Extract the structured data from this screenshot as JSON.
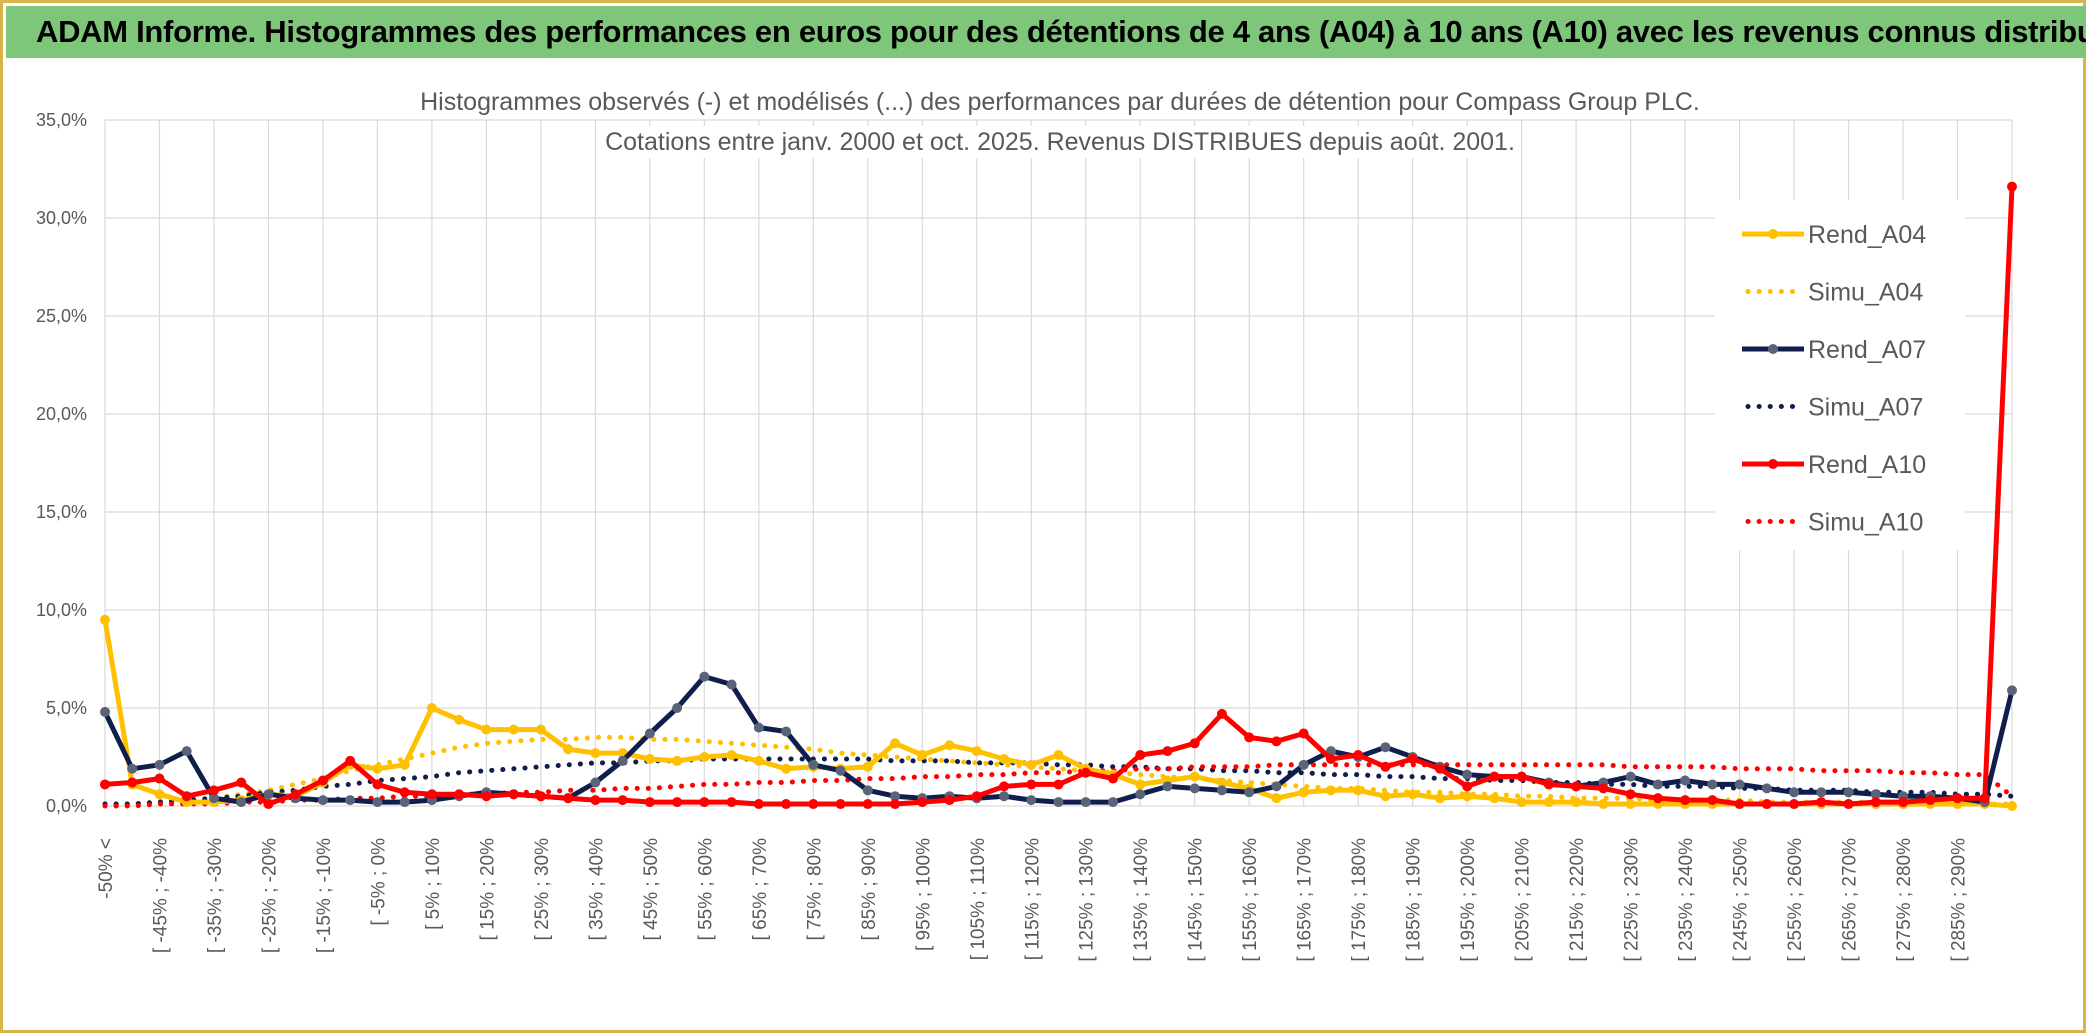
{
  "banner": {
    "title": "ADAM Informe. Histogrammes des performances en euros pour des détentions de 4 ans (A04) à 10 ans (A10) avec les revenus connus distribués"
  },
  "colors": {
    "banner_bg": "#7dc67a",
    "frame_border": "#d9b44a",
    "grid": "#d9d9d9",
    "text": "#595959"
  },
  "chart_data": {
    "type": "line",
    "title_lines": [
      "Histogrammes observés (-) et modélisés (...) des performances par durées de détention pour Compass Group PLC.",
      "Cotations entre janv. 2000 et oct. 2025. Revenus DISTRIBUES depuis août. 2001."
    ],
    "xlabel": "",
    "ylabel": "",
    "ylim": [
      0,
      35
    ],
    "y_ticks": [
      "0,0%",
      "5,0%",
      "10,0%",
      "15,0%",
      "20,0%",
      "25,0%",
      "30,0%",
      "35,0%"
    ],
    "y_tick_values": [
      0,
      5,
      10,
      15,
      20,
      25,
      30,
      35
    ],
    "grid": true,
    "legend_position": "right",
    "x_tick_labels": [
      "-50% <",
      "[ -45% ; -40%",
      "[ -35% ; -30%",
      "[ -25% ; -20%",
      "[ -15% ; -10%",
      "[ -5% ; 0%",
      "[ 5% ; 10%",
      "[ 15% ; 20%",
      "[ 25% ; 30%",
      "[ 35% ; 40%",
      "[ 45% ; 50%",
      "[ 55% ; 60%",
      "[ 65% ; 70%",
      "[ 75% ; 80%",
      "[ 85% ; 90%",
      "[ 95% ; 100%",
      "[ 105% ; 110%",
      "[ 115% ; 120%",
      "[ 125% ; 130%",
      "[ 135% ; 140%",
      "[ 145% ; 150%",
      "[ 155% ; 160%",
      "[ 165% ; 170%",
      "[ 175% ; 180%",
      "[ 185% ; 190%",
      "[ 195% ; 200%",
      "[ 205% ; 210%",
      "[ 215% ; 220%",
      "[ 225% ; 230%",
      "[ 235% ; 240%",
      "[ 245% ; 250%",
      "[ 255% ; 260%",
      "[ 265% ; 270%",
      "[ 275% ; 280%",
      "[ 285% ; 290%"
    ],
    "series": [
      {
        "name": "Rend_A04",
        "color": "#FFC000",
        "style": "solid",
        "values": [
          9.5,
          1.1,
          0.6,
          0.2,
          0.2,
          0.3,
          0.6,
          0.5,
          1.2,
          2.1,
          1.9,
          2.1,
          5.0,
          4.4,
          3.9,
          3.9,
          3.9,
          2.9,
          2.7,
          2.7,
          2.4,
          2.3,
          2.5,
          2.6,
          2.3,
          1.9,
          2.0,
          1.9,
          2.0,
          3.2,
          2.6,
          3.1,
          2.8,
          2.4,
          2.1,
          2.6,
          1.9,
          1.6,
          1.1,
          1.3,
          1.5,
          1.2,
          0.9,
          0.4,
          0.7,
          0.8,
          0.8,
          0.5,
          0.6,
          0.4,
          0.5,
          0.4,
          0.2,
          0.2,
          0.2,
          0.1,
          0.1,
          0.1,
          0.1,
          0.1,
          0.1,
          0.1,
          0.1,
          0.1,
          0.1,
          0.1,
          0.1,
          0.1,
          0.1,
          0.1,
          0.0
        ]
      },
      {
        "name": "Simu_A04",
        "color": "#FFC000",
        "style": "dotted",
        "values": [
          0.1,
          0.1,
          0.2,
          0.3,
          0.4,
          0.6,
          0.8,
          1.1,
          1.4,
          1.8,
          2.1,
          2.4,
          2.7,
          3.0,
          3.2,
          3.3,
          3.4,
          3.4,
          3.5,
          3.5,
          3.4,
          3.4,
          3.3,
          3.2,
          3.1,
          3.0,
          2.9,
          2.7,
          2.6,
          2.5,
          2.4,
          2.3,
          2.2,
          2.1,
          2.0,
          1.9,
          1.8,
          1.7,
          1.6,
          1.5,
          1.4,
          1.3,
          1.2,
          1.1,
          1.0,
          0.9,
          0.9,
          0.8,
          0.7,
          0.7,
          0.6,
          0.6,
          0.5,
          0.5,
          0.4,
          0.4,
          0.4,
          0.3,
          0.3,
          0.3,
          0.3,
          0.2,
          0.2,
          0.2,
          0.2,
          0.2,
          0.1,
          0.1,
          0.1,
          0.1,
          0.1
        ]
      },
      {
        "name": "Rend_A07",
        "color": "#0F1E4D",
        "style": "solid",
        "values": [
          4.8,
          1.9,
          2.1,
          2.8,
          0.4,
          0.2,
          0.6,
          0.4,
          0.3,
          0.3,
          0.2,
          0.2,
          0.3,
          0.5,
          0.7,
          0.6,
          0.5,
          0.4,
          1.2,
          2.3,
          3.7,
          5.0,
          6.6,
          6.2,
          4.0,
          3.8,
          2.1,
          1.8,
          0.8,
          0.5,
          0.4,
          0.5,
          0.4,
          0.5,
          0.3,
          0.2,
          0.2,
          0.2,
          0.6,
          1.0,
          0.9,
          0.8,
          0.7,
          1.0,
          2.1,
          2.8,
          2.5,
          3.0,
          2.5,
          2.0,
          1.6,
          1.5,
          1.5,
          1.2,
          1.0,
          1.2,
          1.5,
          1.1,
          1.3,
          1.1,
          1.1,
          0.9,
          0.7,
          0.7,
          0.7,
          0.6,
          0.5,
          0.5,
          0.4,
          0.2,
          5.9
        ]
      },
      {
        "name": "Simu_A07",
        "color": "#0F1E4D",
        "style": "dotted",
        "values": [
          0.1,
          0.1,
          0.2,
          0.3,
          0.4,
          0.5,
          0.7,
          0.8,
          1.0,
          1.1,
          1.3,
          1.4,
          1.5,
          1.7,
          1.8,
          1.9,
          2.0,
          2.1,
          2.2,
          2.2,
          2.3,
          2.3,
          2.4,
          2.4,
          2.4,
          2.4,
          2.4,
          2.4,
          2.4,
          2.3,
          2.3,
          2.3,
          2.2,
          2.2,
          2.2,
          2.1,
          2.1,
          2.0,
          2.0,
          1.9,
          1.9,
          1.8,
          1.8,
          1.7,
          1.7,
          1.6,
          1.6,
          1.5,
          1.5,
          1.4,
          1.4,
          1.3,
          1.3,
          1.2,
          1.2,
          1.1,
          1.1,
          1.0,
          1.0,
          1.0,
          0.9,
          0.9,
          0.8,
          0.8,
          0.8,
          0.7,
          0.7,
          0.7,
          0.6,
          0.6,
          0.5
        ]
      },
      {
        "name": "Rend_A10",
        "color": "#FF0000",
        "style": "solid",
        "values": [
          1.1,
          1.2,
          1.4,
          0.5,
          0.8,
          1.2,
          0.1,
          0.6,
          1.3,
          2.3,
          1.1,
          0.7,
          0.6,
          0.6,
          0.5,
          0.6,
          0.5,
          0.4,
          0.3,
          0.3,
          0.2,
          0.2,
          0.2,
          0.2,
          0.1,
          0.1,
          0.1,
          0.1,
          0.1,
          0.1,
          0.2,
          0.3,
          0.5,
          1.0,
          1.1,
          1.1,
          1.7,
          1.4,
          2.6,
          2.8,
          3.2,
          4.7,
          3.5,
          3.3,
          3.7,
          2.4,
          2.6,
          2.0,
          2.4,
          1.9,
          1.0,
          1.5,
          1.5,
          1.1,
          1.0,
          0.9,
          0.6,
          0.4,
          0.3,
          0.3,
          0.1,
          0.1,
          0.1,
          0.2,
          0.1,
          0.2,
          0.2,
          0.3,
          0.4,
          0.4,
          31.6
        ]
      },
      {
        "name": "Simu_A10",
        "color": "#FF0000",
        "style": "dotted",
        "values": [
          0.0,
          0.0,
          0.1,
          0.1,
          0.1,
          0.2,
          0.2,
          0.3,
          0.3,
          0.4,
          0.4,
          0.5,
          0.5,
          0.6,
          0.6,
          0.7,
          0.7,
          0.8,
          0.8,
          0.9,
          0.9,
          1.0,
          1.1,
          1.1,
          1.2,
          1.2,
          1.3,
          1.3,
          1.4,
          1.4,
          1.5,
          1.5,
          1.6,
          1.6,
          1.7,
          1.7,
          1.8,
          1.8,
          1.9,
          1.9,
          2.0,
          2.0,
          2.0,
          2.1,
          2.1,
          2.1,
          2.1,
          2.1,
          2.1,
          2.1,
          2.1,
          2.1,
          2.1,
          2.1,
          2.1,
          2.1,
          2.0,
          2.0,
          2.0,
          2.0,
          1.9,
          1.9,
          1.9,
          1.8,
          1.8,
          1.8,
          1.7,
          1.7,
          1.6,
          1.6,
          0.5
        ]
      }
    ]
  }
}
